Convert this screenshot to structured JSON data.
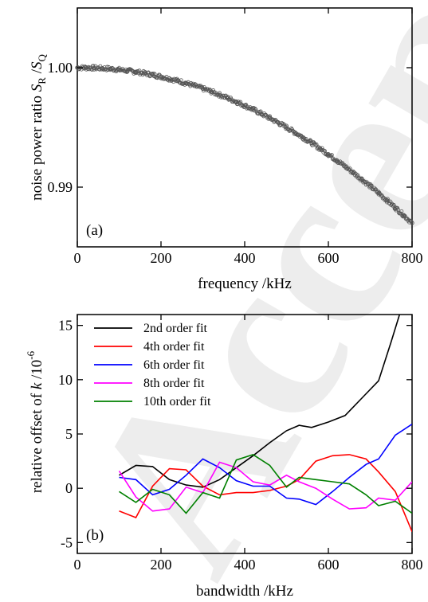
{
  "watermark": "Accepted Manuscript",
  "chart_data": [
    {
      "type": "scatter",
      "panel_label": "(a)",
      "xlabel": "frequency /kHz",
      "ylabel_main": "noise power ratio ",
      "ylabel_sub1": "R",
      "ylabel_sub2": "Q",
      "ylabel_var1": "S",
      "ylabel_var2": "S",
      "ylabel_slash": " /",
      "xlim": [
        0,
        800
      ],
      "ylim": [
        0.985,
        1.005
      ],
      "xticks": [
        0,
        200,
        400,
        600,
        800
      ],
      "xtick_labels": [
        "0",
        "200",
        "400",
        "600",
        "800"
      ],
      "yticks": [
        0.99,
        1.0
      ],
      "ytick_labels": [
        "0.99",
        "1.00"
      ],
      "series": [
        {
          "color": "#555555",
          "x": [
            0,
            20,
            40,
            60,
            80,
            100,
            120,
            140,
            160,
            180,
            200,
            220,
            240,
            260,
            280,
            300,
            320,
            340,
            360,
            380,
            400,
            420,
            440,
            460,
            480,
            500,
            520,
            540,
            560,
            580,
            600,
            620,
            640,
            660,
            680,
            700,
            720,
            740,
            760,
            780,
            800
          ],
          "y": [
            1.0,
            1.0,
            0.99998,
            0.99995,
            0.9999,
            0.99983,
            0.99975,
            0.99965,
            0.99953,
            0.9994,
            0.99925,
            0.99908,
            0.9989,
            0.9987,
            0.99848,
            0.99825,
            0.998,
            0.99773,
            0.99745,
            0.99715,
            0.99683,
            0.9965,
            0.99615,
            0.99578,
            0.9954,
            0.995,
            0.99458,
            0.99415,
            0.9937,
            0.99323,
            0.99275,
            0.99225,
            0.99173,
            0.9912,
            0.99065,
            0.99008,
            0.9895,
            0.9889,
            0.98828,
            0.98765,
            0.987
          ]
        }
      ]
    },
    {
      "type": "line",
      "panel_label": "(b)",
      "xlabel": "bandwidth /kHz",
      "ylabel_main": "relative offset of ",
      "ylabel_var": "k",
      "ylabel_unit": " /10",
      "ylabel_exp": "-6",
      "xlim": [
        0,
        800
      ],
      "ylim": [
        -6,
        16
      ],
      "xticks": [
        0,
        200,
        400,
        600,
        800
      ],
      "xtick_labels": [
        "0",
        "200",
        "400",
        "600",
        "800"
      ],
      "yticks": [
        -5,
        0,
        5,
        10,
        15
      ],
      "ytick_labels": [
        "-5",
        "0",
        "5",
        "10",
        "15"
      ],
      "legend_position": "top-left",
      "series": [
        {
          "name": "2nd order fit",
          "color": "#000000",
          "x": [
            100,
            140,
            180,
            220,
            260,
            300,
            340,
            380,
            420,
            460,
            500,
            530,
            560,
            600,
            640,
            680,
            720,
            750,
            770
          ],
          "y": [
            1.2,
            2.1,
            2.0,
            0.8,
            0.3,
            0.1,
            0.8,
            1.9,
            3.0,
            4.2,
            5.3,
            5.8,
            5.6,
            6.1,
            6.7,
            8.3,
            9.9,
            13.5,
            16.0
          ]
        },
        {
          "name": "4th order fit",
          "color": "#ff0000",
          "x": [
            100,
            140,
            180,
            220,
            260,
            300,
            340,
            380,
            420,
            460,
            500,
            530,
            570,
            610,
            650,
            690,
            720,
            760,
            800
          ],
          "y": [
            -2.1,
            -2.7,
            0.2,
            1.8,
            1.7,
            0.2,
            -0.6,
            -0.4,
            -0.4,
            -0.2,
            0.2,
            0.8,
            2.5,
            3.0,
            3.1,
            2.7,
            1.5,
            -0.3,
            -4.0
          ]
        },
        {
          "name": "6th order fit",
          "color": "#0000ff",
          "x": [
            100,
            140,
            180,
            220,
            260,
            300,
            340,
            380,
            420,
            460,
            500,
            530,
            570,
            610,
            650,
            690,
            720,
            760,
            800
          ],
          "y": [
            1.0,
            0.8,
            -0.6,
            -0.1,
            1.2,
            2.7,
            1.9,
            0.7,
            0.2,
            0.2,
            -0.9,
            -1.0,
            -1.5,
            -0.3,
            1.0,
            2.2,
            2.7,
            4.9,
            5.9
          ]
        },
        {
          "name": "8th order fit",
          "color": "#ff00ff",
          "x": [
            100,
            140,
            180,
            220,
            260,
            300,
            340,
            380,
            420,
            460,
            500,
            530,
            570,
            610,
            650,
            690,
            720,
            760,
            800
          ],
          "y": [
            1.6,
            -0.8,
            -2.1,
            -1.9,
            0.1,
            -0.4,
            2.4,
            1.9,
            0.6,
            0.3,
            1.2,
            0.6,
            0.0,
            -1.0,
            -1.9,
            -1.8,
            -0.9,
            -1.1,
            0.6
          ]
        },
        {
          "name": "10th order fit",
          "color": "#008000",
          "x": [
            100,
            140,
            180,
            220,
            260,
            300,
            340,
            380,
            420,
            460,
            500,
            530,
            570,
            610,
            650,
            690,
            720,
            760,
            800
          ],
          "y": [
            -0.3,
            -1.3,
            -0.1,
            -0.6,
            -2.3,
            -0.4,
            -0.9,
            2.6,
            3.1,
            2.1,
            0.1,
            1.0,
            0.8,
            0.6,
            0.4,
            -0.6,
            -1.6,
            -1.2,
            -2.3
          ]
        }
      ]
    }
  ]
}
